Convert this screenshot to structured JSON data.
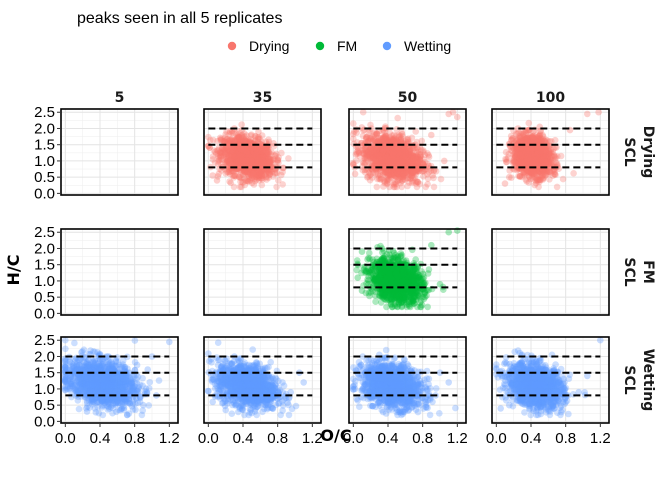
{
  "chart_data": {
    "type": "scatter",
    "title": "peaks seen in all 5 replicates",
    "xlabel": "O/C",
    "ylabel": "H/C",
    "xlim": [
      -0.05,
      1.3
    ],
    "ylim": [
      -0.05,
      2.6
    ],
    "x_ticks": [
      "0.0",
      "0.4",
      "0.8",
      "1.2"
    ],
    "x_tick_values": [
      0.0,
      0.4,
      0.8,
      1.2
    ],
    "y_ticks": [
      "0.0",
      "0.5",
      "1.0",
      "1.5",
      "2.0",
      "2.5"
    ],
    "y_tick_values": [
      0.0,
      0.5,
      1.0,
      1.5,
      2.0,
      2.5
    ],
    "column_strips": [
      "5",
      "35",
      "50",
      "100"
    ],
    "row_strips": [
      {
        "line1": "Drying",
        "line2": "SCL"
      },
      {
        "line1": "FM",
        "line2": "SCL"
      },
      {
        "line1": "Wetting",
        "line2": "SCL"
      }
    ],
    "legend": {
      "placement": "top",
      "entries": [
        {
          "name": "Drying",
          "color": "#F8766D"
        },
        {
          "name": "FM",
          "color": "#00BA38"
        },
        {
          "name": "Wetting",
          "color": "#619CFF"
        }
      ]
    },
    "reference_lines_y": [
      0.8,
      1.5,
      2.0
    ],
    "grid": true,
    "series": [
      {
        "name": "Drying",
        "color": "#F8766D",
        "panels": [
          {
            "col": "35",
            "center": [
              0.45,
              1.1
            ],
            "spread": [
              0.15,
              0.3
            ],
            "outliers": [
              [
                0.05,
                0.55
              ],
              [
                0.1,
                0.4
              ],
              [
                0.12,
                0.6
              ],
              [
                0.8,
                1.0
              ],
              [
                0.25,
                1.9
              ],
              [
                0.3,
                2.0
              ],
              [
                0.35,
                1.75
              ],
              [
                0.6,
                0.6
              ]
            ]
          },
          {
            "col": "50",
            "center": [
              0.45,
              1.1
            ],
            "spread": [
              0.17,
              0.35
            ],
            "outliers": [
              [
                1.15,
                2.5
              ],
              [
                1.2,
                2.35
              ],
              [
                1.1,
                2.45
              ],
              [
                0.9,
                1.8
              ],
              [
                0.05,
                1.4
              ],
              [
                0.1,
                1.55
              ],
              [
                0.03,
                1.2
              ],
              [
                1.05,
                1.0
              ],
              [
                0.02,
                0.6
              ]
            ]
          },
          {
            "col": "100",
            "center": [
              0.42,
              1.15
            ],
            "spread": [
              0.11,
              0.3
            ],
            "outliers": [
              [
                0.1,
                0.3
              ],
              [
                0.15,
                0.5
              ],
              [
                1.05,
                2.45
              ],
              [
                1.18,
                2.5
              ],
              [
                0.25,
                2.0
              ],
              [
                0.5,
                2.05
              ],
              [
                0.85,
                1.95
              ],
              [
                0.65,
                0.7
              ]
            ]
          }
        ]
      },
      {
        "name": "FM",
        "color": "#00BA38",
        "panels": [
          {
            "col": "50",
            "center": [
              0.5,
              1.0
            ],
            "spread": [
              0.15,
              0.32
            ],
            "outliers": [
              [
                1.1,
                2.5
              ],
              [
                1.2,
                2.55
              ],
              [
                0.9,
                2.1
              ],
              [
                0.1,
                1.9
              ],
              [
                0.15,
                1.3
              ],
              [
                0.05,
                1.1
              ],
              [
                0.1,
                0.7
              ],
              [
                0.2,
                0.65
              ],
              [
                1.0,
                0.9
              ]
            ]
          }
        ]
      },
      {
        "name": "Wetting",
        "color": "#619CFF",
        "panels": [
          {
            "col": "5",
            "center": [
              0.42,
              1.2
            ],
            "spread": [
              0.2,
              0.35
            ],
            "outliers": [
              [
                0.02,
                1.2
              ],
              [
                0.0,
                1.3
              ],
              [
                0.05,
                1.0
              ],
              [
                1.2,
                2.45
              ],
              [
                1.0,
                2.0
              ],
              [
                0.25,
                0.3
              ],
              [
                0.9,
                0.5
              ],
              [
                0.95,
                1.6
              ],
              [
                1.05,
                0.8
              ]
            ]
          },
          {
            "col": "35",
            "center": [
              0.45,
              1.1
            ],
            "spread": [
              0.17,
              0.32
            ],
            "outliers": [
              [
                0.05,
                0.6
              ],
              [
                0.08,
                0.8
              ],
              [
                1.05,
                1.5
              ],
              [
                1.1,
                1.2
              ],
              [
                0.95,
                0.9
              ],
              [
                0.3,
                2.0
              ],
              [
                0.2,
                0.35
              ]
            ]
          },
          {
            "col": "50",
            "center": [
              0.45,
              1.1
            ],
            "spread": [
              0.17,
              0.32
            ],
            "outliers": [
              [
                0.05,
                0.65
              ],
              [
                0.02,
                1.0
              ],
              [
                1.0,
                1.5
              ],
              [
                1.1,
                1.2
              ],
              [
                0.95,
                0.8
              ],
              [
                0.3,
                2.05
              ],
              [
                0.6,
                0.35
              ]
            ]
          },
          {
            "col": "100",
            "center": [
              0.45,
              1.1
            ],
            "spread": [
              0.16,
              0.32
            ],
            "outliers": [
              [
                0.05,
                0.4
              ],
              [
                0.15,
                0.5
              ],
              [
                1.2,
                2.5
              ],
              [
                1.05,
                1.4
              ],
              [
                0.3,
                2.05
              ],
              [
                0.95,
                0.9
              ]
            ]
          }
        ]
      }
    ]
  }
}
